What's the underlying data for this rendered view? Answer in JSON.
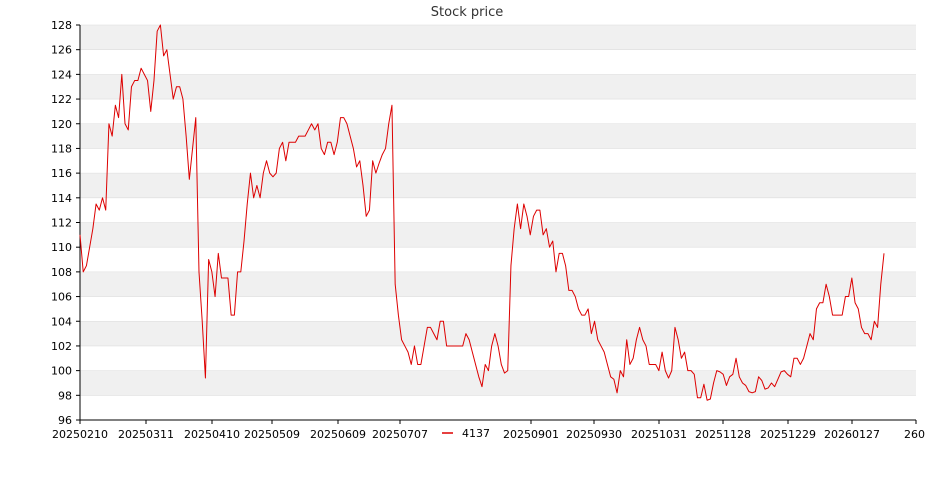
{
  "chart_data": {
    "type": "line",
    "title": "Stock price",
    "xlabel": "",
    "ylabel": "",
    "ylim": [
      96,
      128
    ],
    "yticks": [
      96,
      98,
      100,
      102,
      104,
      106,
      108,
      110,
      112,
      114,
      116,
      118,
      120,
      122,
      124,
      126,
      128
    ],
    "xticks": [
      "20250210",
      "20250311",
      "20250410",
      "20250509",
      "20250609",
      "20250707",
      "20250901",
      "20250930",
      "20251031",
      "20251128",
      "20251229",
      "20260127",
      "260"
    ],
    "grid": "horizontal bands",
    "legend": "bottom-center",
    "series": [
      {
        "name": "4137",
        "color": "#dd0000",
        "values": [
          111,
          108,
          108.5,
          110,
          111.5,
          113.5,
          113,
          114,
          113,
          120,
          119,
          121.5,
          120.5,
          124,
          120,
          119.5,
          123,
          123.5,
          123.5,
          124.5,
          124,
          123.5,
          121,
          123.5,
          127.5,
          128,
          125.5,
          126,
          124,
          122,
          123,
          123,
          122,
          119,
          115.5,
          118,
          120.5,
          108,
          104,
          99.4,
          109,
          108,
          106,
          109.5,
          107.5,
          107.5,
          107.5,
          104.5,
          104.5,
          108,
          108,
          110.5,
          113.5,
          116,
          114,
          115,
          114,
          116,
          117,
          116,
          115.7,
          116,
          118,
          118.5,
          117,
          118.5,
          118.5,
          118.5,
          119,
          119,
          119,
          119.5,
          120,
          119.5,
          120,
          118,
          117.5,
          118.5,
          118.5,
          117.5,
          118.5,
          120.5,
          120.5,
          120,
          119,
          118,
          116.5,
          117,
          115,
          112.5,
          113,
          117,
          116,
          116.8,
          117.5,
          118,
          120,
          121.5,
          107,
          104.5,
          102.5,
          102,
          101.5,
          100.5,
          102,
          100.5,
          100.5,
          102,
          103.5,
          103.5,
          103,
          102.5,
          104,
          104,
          102,
          102,
          102,
          102,
          102,
          102,
          103,
          102.5,
          101.5,
          100.5,
          99.5,
          98.7,
          100.5,
          100,
          102,
          103,
          102,
          100.5,
          99.8,
          100,
          108.5,
          111.5,
          113.5,
          111.5,
          113.5,
          112.5,
          111,
          112.5,
          113,
          113,
          111,
          111.5,
          110,
          110.5,
          108,
          109.5,
          109.5,
          108.5,
          106.5,
          106.5,
          106,
          105,
          104.5,
          104.5,
          105,
          103,
          104,
          102.5,
          102,
          101.5,
          100.5,
          99.5,
          99.3,
          98.2,
          100,
          99.5,
          102.5,
          100.5,
          101,
          102.5,
          103.5,
          102.5,
          102,
          100.5,
          100.5,
          100.5,
          100,
          101.5,
          100,
          99.4,
          100,
          103.5,
          102.5,
          101,
          101.5,
          100,
          100,
          99.7,
          97.8,
          97.8,
          98.9,
          97.6,
          97.7,
          99,
          100,
          99.9,
          99.7,
          98.8,
          99.5,
          99.7,
          101,
          99.5,
          99,
          98.8,
          98.3,
          98.2,
          98.3,
          99.5,
          99.2,
          98.5,
          98.6,
          99,
          98.7,
          99.3,
          99.9,
          100,
          99.7,
          99.5,
          101,
          101,
          100.5,
          101,
          102,
          103,
          102.5,
          105,
          105.5,
          105.5,
          107,
          106,
          104.5,
          104.5,
          104.5,
          104.5,
          106,
          106,
          107.5,
          105.5,
          105,
          103.5,
          103,
          103,
          102.5,
          104,
          103.5,
          107,
          109.5
        ]
      }
    ]
  }
}
